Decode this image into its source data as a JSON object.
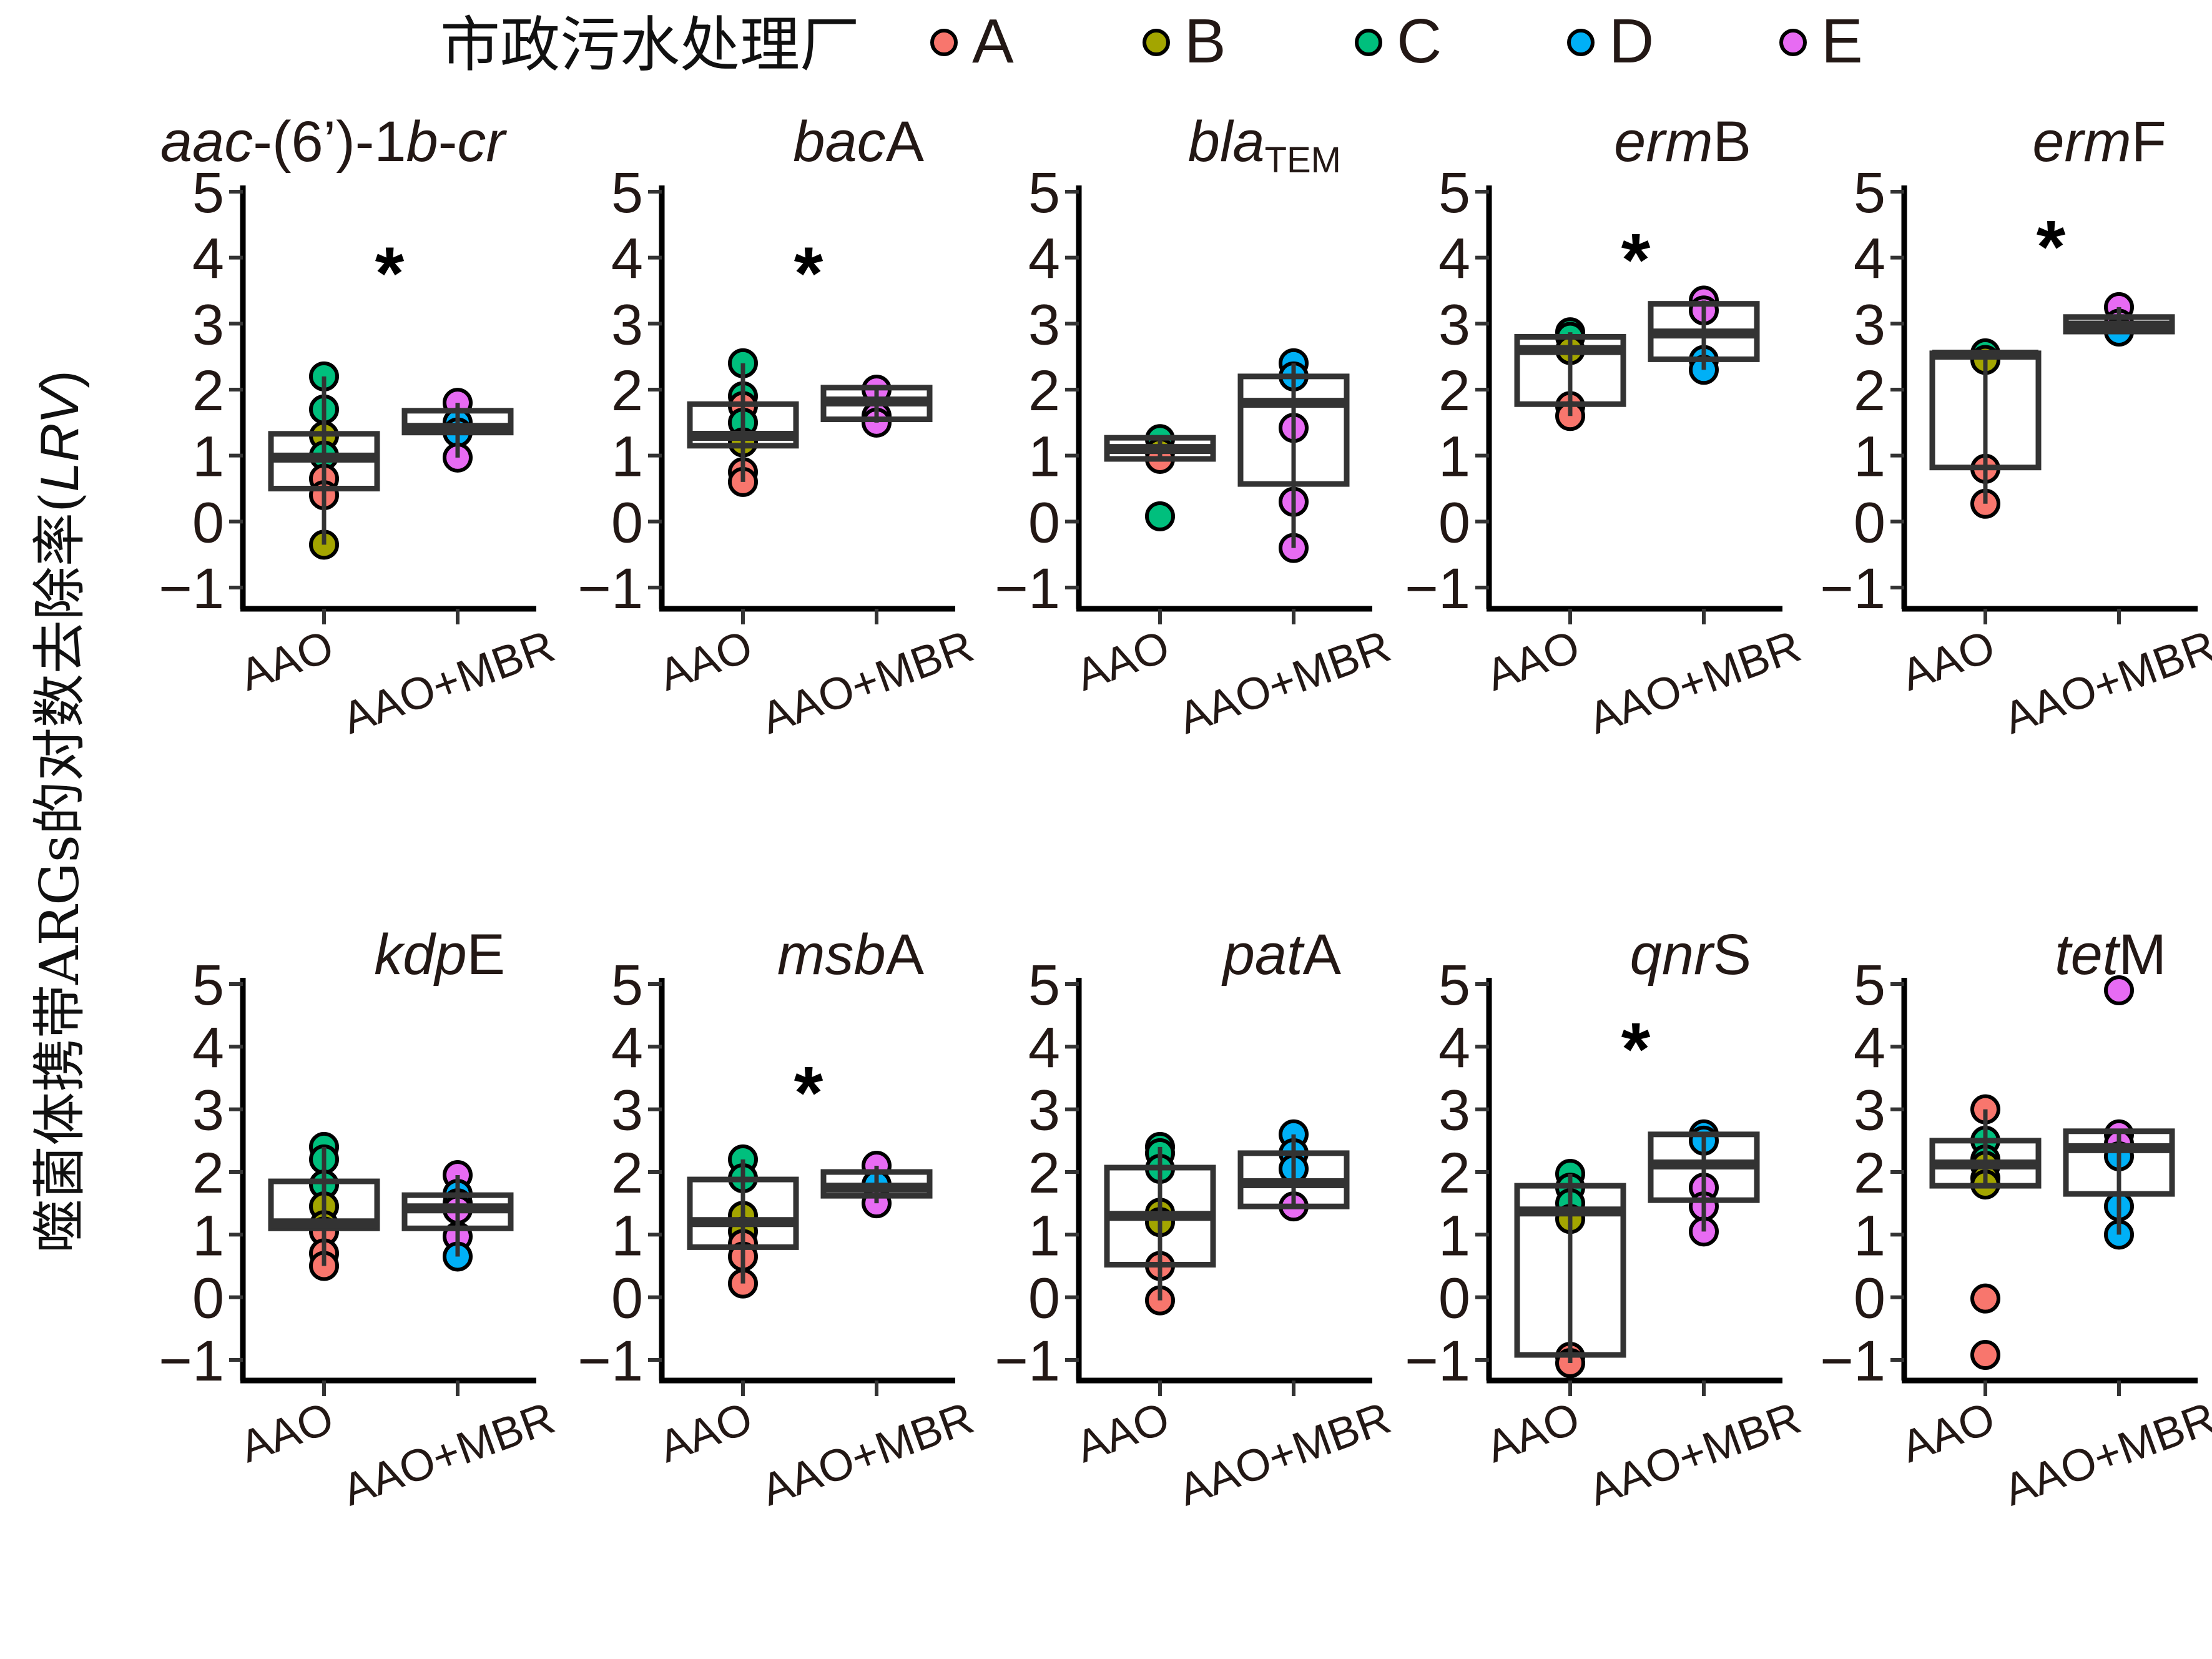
{
  "legend": {
    "title": "市政污水处理厂",
    "items": [
      {
        "key": "A",
        "label": "A",
        "color": "#F8766D"
      },
      {
        "key": "B",
        "label": "B",
        "color": "#A3A500"
      },
      {
        "key": "C",
        "label": "C",
        "color": "#00BF7D"
      },
      {
        "key": "D",
        "label": "D",
        "color": "#00B0F6"
      },
      {
        "key": "E",
        "label": "E",
        "color": "#E76BF3"
      }
    ]
  },
  "y_axis_title": {
    "prefix": "噬菌体携带ARGs的对数去除率(",
    "italic": "LRV",
    "suffix": ")"
  },
  "chart_data": {
    "type": "box",
    "ylabel": "噬菌体携带ARGs的对数去除率(LRV)",
    "ylim": [
      -1.3,
      5.1
    ],
    "yticks": [
      5,
      4,
      3,
      2,
      1,
      0,
      -1
    ],
    "ytick_labels": [
      "5",
      "4",
      "3",
      "2",
      "1",
      "0",
      "−1"
    ],
    "categories": [
      "AAO",
      "AAO+MBR"
    ],
    "grid": false,
    "legend_position": "top",
    "panels": [
      {
        "title_parts": [
          {
            "t": "aac",
            "i": true
          },
          {
            "t": "-(6’)-1",
            "i": false
          },
          {
            "t": "b",
            "i": true
          },
          {
            "t": "-",
            "i": false
          },
          {
            "t": "cr",
            "i": true
          }
        ],
        "title": "aac-(6')-1b-cr",
        "significant": true,
        "sig_label": "*",
        "sig_y": 3.8,
        "groups": [
          {
            "name": "AAO",
            "q1": 0.5,
            "median": 0.97,
            "q3": 1.33,
            "whisker_low": -0.35,
            "whisker_high": 2.2,
            "points": [
              {
                "p": "C",
                "y": 2.2
              },
              {
                "p": "C",
                "y": 1.7
              },
              {
                "p": "B",
                "y": 1.3
              },
              {
                "p": "C",
                "y": 1.0
              },
              {
                "p": "A",
                "y": 0.65
              },
              {
                "p": "A",
                "y": 0.4
              },
              {
                "p": "B",
                "y": -0.35
              }
            ]
          },
          {
            "name": "AAO+MBR",
            "q1": 1.35,
            "median": 1.42,
            "q3": 1.68,
            "whisker_low": 0.97,
            "whisker_high": 1.8,
            "points": [
              {
                "p": "E",
                "y": 1.8
              },
              {
                "p": "D",
                "y": 1.5
              },
              {
                "p": "D",
                "y": 1.35
              },
              {
                "p": "E",
                "y": 0.97
              }
            ]
          }
        ]
      },
      {
        "title_parts": [
          {
            "t": "bac",
            "i": true
          },
          {
            "t": "A",
            "i": false
          }
        ],
        "title": "bacA",
        "significant": true,
        "sig_label": "*",
        "sig_y": 3.8,
        "groups": [
          {
            "name": "AAO",
            "q1": 1.15,
            "median": 1.3,
            "q3": 1.78,
            "whisker_low": 0.6,
            "whisker_high": 2.4,
            "points": [
              {
                "p": "C",
                "y": 2.4
              },
              {
                "p": "C",
                "y": 1.9
              },
              {
                "p": "A",
                "y": 1.75
              },
              {
                "p": "C",
                "y": 1.5
              },
              {
                "p": "B",
                "y": 1.2
              },
              {
                "p": "A",
                "y": 0.75
              },
              {
                "p": "A",
                "y": 0.6
              }
            ]
          },
          {
            "name": "AAO+MBR",
            "q1": 1.55,
            "median": 1.82,
            "q3": 2.03,
            "whisker_low": 1.5,
            "whisker_high": 2.0,
            "points": [
              {
                "p": "E",
                "y": 2.0
              },
              {
                "p": "E",
                "y": 1.6
              },
              {
                "p": "E",
                "y": 1.5
              }
            ]
          }
        ]
      },
      {
        "title_parts": [
          {
            "t": "bla",
            "i": true
          },
          {
            "t": "TEM",
            "i": false,
            "sub": true
          }
        ],
        "title": "blaTEM",
        "significant": false,
        "sig_label": "",
        "sig_y": 3.8,
        "groups": [
          {
            "name": "AAO",
            "q1": 0.95,
            "median": 1.1,
            "q3": 1.27,
            "whisker_low": 0.95,
            "whisker_high": 1.27,
            "points": [
              {
                "p": "C",
                "y": 1.25
              },
              {
                "p": "B",
                "y": 1.05
              },
              {
                "p": "A",
                "y": 0.95
              },
              {
                "p": "C",
                "y": 0.08
              }
            ]
          },
          {
            "name": "AAO+MBR",
            "q1": 0.57,
            "median": 1.8,
            "q3": 2.2,
            "whisker_low": -0.4,
            "whisker_high": 2.4,
            "points": [
              {
                "p": "D",
                "y": 2.4
              },
              {
                "p": "D",
                "y": 2.2
              },
              {
                "p": "E",
                "y": 1.42
              },
              {
                "p": "E",
                "y": 0.3
              },
              {
                "p": "E",
                "y": -0.4
              }
            ]
          }
        ]
      },
      {
        "title_parts": [
          {
            "t": "erm",
            "i": true
          },
          {
            "t": "B",
            "i": false
          }
        ],
        "title": "ermB",
        "significant": true,
        "sig_label": "*",
        "sig_y": 4.0,
        "groups": [
          {
            "name": "AAO",
            "q1": 1.78,
            "median": 2.6,
            "q3": 2.8,
            "whisker_low": 1.6,
            "whisker_high": 2.87,
            "points": [
              {
                "p": "C",
                "y": 2.87
              },
              {
                "p": "C",
                "y": 2.8
              },
              {
                "p": "B",
                "y": 2.6
              },
              {
                "p": "A",
                "y": 1.75
              },
              {
                "p": "A",
                "y": 1.6
              }
            ]
          },
          {
            "name": "AAO+MBR",
            "q1": 2.46,
            "median": 2.85,
            "q3": 3.3,
            "whisker_low": 2.3,
            "whisker_high": 3.35,
            "points": [
              {
                "p": "E",
                "y": 3.35
              },
              {
                "p": "E",
                "y": 3.2
              },
              {
                "p": "D",
                "y": 2.45
              },
              {
                "p": "D",
                "y": 2.3
              }
            ]
          }
        ]
      },
      {
        "title_parts": [
          {
            "t": "erm",
            "i": true
          },
          {
            "t": "F",
            "i": false
          }
        ],
        "title": "ermF",
        "significant": true,
        "sig_label": "*",
        "sig_y": 4.2,
        "groups": [
          {
            "name": "AAO",
            "q1": 0.82,
            "median": 2.53,
            "q3": 2.55,
            "whisker_low": 0.27,
            "whisker_high": 2.55,
            "points": [
              {
                "p": "C",
                "y": 2.55
              },
              {
                "p": "B",
                "y": 2.45
              },
              {
                "p": "A",
                "y": 0.8
              },
              {
                "p": "A",
                "y": 0.27
              }
            ]
          },
          {
            "name": "AAO+MBR",
            "q1": 2.88,
            "median": 2.97,
            "q3": 3.1,
            "whisker_low": 2.88,
            "whisker_high": 3.25,
            "points": [
              {
                "p": "E",
                "y": 3.25
              },
              {
                "p": "E",
                "y": 3.0
              },
              {
                "p": "D",
                "y": 2.88
              }
            ]
          }
        ]
      },
      {
        "title_parts": [
          {
            "t": "kdp",
            "i": true
          },
          {
            "t": "E",
            "i": false
          }
        ],
        "title": "kdpE",
        "significant": false,
        "sig_label": "",
        "sig_y": 3.8,
        "groups": [
          {
            "name": "AAO",
            "q1": 1.1,
            "median": 1.18,
            "q3": 1.85,
            "whisker_low": 0.5,
            "whisker_high": 2.4,
            "points": [
              {
                "p": "C",
                "y": 2.4
              },
              {
                "p": "C",
                "y": 2.2
              },
              {
                "p": "C",
                "y": 1.8
              },
              {
                "p": "B",
                "y": 1.45
              },
              {
                "p": "B",
                "y": 1.15
              },
              {
                "p": "A",
                "y": 1.05
              },
              {
                "p": "A",
                "y": 0.7
              },
              {
                "p": "A",
                "y": 0.5
              }
            ]
          },
          {
            "name": "AAO+MBR",
            "q1": 1.1,
            "median": 1.42,
            "q3": 1.63,
            "whisker_low": 0.65,
            "whisker_high": 1.95,
            "points": [
              {
                "p": "E",
                "y": 1.95
              },
              {
                "p": "D",
                "y": 1.65
              },
              {
                "p": "D",
                "y": 1.5
              },
              {
                "p": "E",
                "y": 1.4
              },
              {
                "p": "E",
                "y": 0.97
              },
              {
                "p": "D",
                "y": 0.65
              }
            ]
          }
        ]
      },
      {
        "title_parts": [
          {
            "t": "msb",
            "i": true
          },
          {
            "t": "A",
            "i": false
          }
        ],
        "title": "msbA",
        "significant": true,
        "sig_label": "*",
        "sig_y": 3.3,
        "groups": [
          {
            "name": "AAO",
            "q1": 0.8,
            "median": 1.2,
            "q3": 1.88,
            "whisker_low": 0.22,
            "whisker_high": 2.2,
            "points": [
              {
                "p": "C",
                "y": 2.2
              },
              {
                "p": "C",
                "y": 1.9
              },
              {
                "p": "B",
                "y": 1.3
              },
              {
                "p": "B",
                "y": 1.05
              },
              {
                "p": "A",
                "y": 0.85
              },
              {
                "p": "A",
                "y": 0.65
              },
              {
                "p": "A",
                "y": 0.22
              }
            ]
          },
          {
            "name": "AAO+MBR",
            "q1": 1.62,
            "median": 1.75,
            "q3": 2.0,
            "whisker_low": 1.5,
            "whisker_high": 2.1,
            "points": [
              {
                "p": "E",
                "y": 2.1
              },
              {
                "p": "D",
                "y": 1.8
              },
              {
                "p": "E",
                "y": 1.5
              }
            ]
          }
        ]
      },
      {
        "title_parts": [
          {
            "t": "pat",
            "i": true
          },
          {
            "t": "A",
            "i": false
          }
        ],
        "title": "patA",
        "significant": false,
        "sig_label": "",
        "sig_y": 3.8,
        "groups": [
          {
            "name": "AAO",
            "q1": 0.52,
            "median": 1.3,
            "q3": 2.07,
            "whisker_low": -0.05,
            "whisker_high": 2.4,
            "points": [
              {
                "p": "C",
                "y": 2.4
              },
              {
                "p": "C",
                "y": 2.3
              },
              {
                "p": "C",
                "y": 2.05
              },
              {
                "p": "B",
                "y": 1.35
              },
              {
                "p": "B",
                "y": 1.2
              },
              {
                "p": "A",
                "y": 0.5
              },
              {
                "p": "A",
                "y": -0.05
              }
            ]
          },
          {
            "name": "AAO+MBR",
            "q1": 1.45,
            "median": 1.82,
            "q3": 2.3,
            "whisker_low": 1.45,
            "whisker_high": 2.6,
            "points": [
              {
                "p": "D",
                "y": 2.6
              },
              {
                "p": "D",
                "y": 2.3
              },
              {
                "p": "D",
                "y": 2.05
              },
              {
                "p": "E",
                "y": 1.45
              }
            ]
          }
        ]
      },
      {
        "title_parts": [
          {
            "t": "qnr",
            "i": true
          },
          {
            "t": "S",
            "i": false
          }
        ],
        "title": "qnrS",
        "significant": true,
        "sig_label": "*",
        "sig_y": 4.0,
        "groups": [
          {
            "name": "AAO",
            "q1": -0.92,
            "median": 1.37,
            "q3": 1.78,
            "whisker_low": -1.05,
            "whisker_high": 1.97,
            "points": [
              {
                "p": "C",
                "y": 1.97
              },
              {
                "p": "C",
                "y": 1.75
              },
              {
                "p": "C",
                "y": 1.5
              },
              {
                "p": "B",
                "y": 1.25
              },
              {
                "p": "A",
                "y": -0.95
              },
              {
                "p": "A",
                "y": -1.05
              }
            ]
          },
          {
            "name": "AAO+MBR",
            "q1": 1.55,
            "median": 2.12,
            "q3": 2.6,
            "whisker_low": 1.05,
            "whisker_high": 2.6,
            "points": [
              {
                "p": "D",
                "y": 2.6
              },
              {
                "p": "D",
                "y": 2.5
              },
              {
                "p": "E",
                "y": 1.75
              },
              {
                "p": "E",
                "y": 1.45
              },
              {
                "p": "E",
                "y": 1.05
              }
            ]
          }
        ]
      },
      {
        "title_parts": [
          {
            "t": "tet",
            "i": true
          },
          {
            "t": "M",
            "i": false
          }
        ],
        "title": "tetM",
        "significant": false,
        "sig_label": "",
        "sig_y": 3.8,
        "groups": [
          {
            "name": "AAO",
            "q1": 1.78,
            "median": 2.12,
            "q3": 2.5,
            "whisker_low": 1.8,
            "whisker_high": 3.0,
            "points": [
              {
                "p": "A",
                "y": 3.0
              },
              {
                "p": "C",
                "y": 2.5
              },
              {
                "p": "C",
                "y": 2.2
              },
              {
                "p": "B",
                "y": 2.1
              },
              {
                "p": "B",
                "y": 1.9
              },
              {
                "p": "B",
                "y": 1.8
              },
              {
                "p": "A",
                "y": -0.02
              },
              {
                "p": "A",
                "y": -0.92
              }
            ]
          },
          {
            "name": "AAO+MBR",
            "q1": 1.65,
            "median": 2.38,
            "q3": 2.65,
            "whisker_low": 1.0,
            "whisker_high": 2.65,
            "points": [
              {
                "p": "E",
                "y": 4.9
              },
              {
                "p": "E",
                "y": 2.6
              },
              {
                "p": "E",
                "y": 2.45
              },
              {
                "p": "D",
                "y": 2.25
              },
              {
                "p": "D",
                "y": 1.45
              },
              {
                "p": "D",
                "y": 1.0
              }
            ]
          }
        ]
      }
    ]
  }
}
